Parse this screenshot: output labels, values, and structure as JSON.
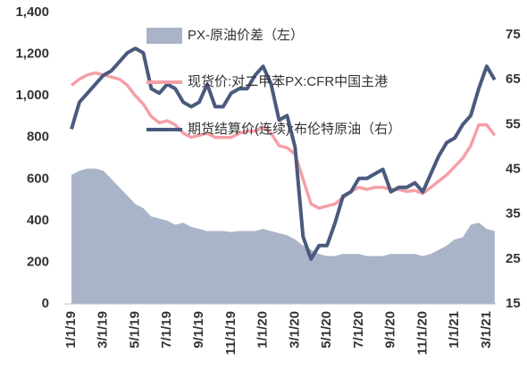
{
  "chart_data": {
    "type": "combo",
    "categories": [
      "1/1/19",
      null,
      null,
      null,
      "3/1/19",
      null,
      null,
      null,
      "5/1/19",
      null,
      null,
      null,
      "7/1/19",
      null,
      null,
      null,
      "9/1/19",
      null,
      null,
      null,
      "11/1/19",
      null,
      null,
      null,
      "1/1/20",
      null,
      null,
      null,
      "3/1/20",
      null,
      null,
      null,
      "5/1/20",
      null,
      null,
      null,
      "7/1/20",
      null,
      null,
      null,
      "9/1/20",
      null,
      null,
      null,
      "11/1/20",
      null,
      null,
      null,
      "1/1/21",
      null,
      null,
      null,
      "3/1/21",
      null
    ],
    "series": [
      {
        "name": "PX-原油价差（左）",
        "type": "area",
        "color": "#aab4c8",
        "values": [
          620,
          640,
          650,
          650,
          640,
          600,
          560,
          520,
          480,
          460,
          420,
          410,
          400,
          380,
          390,
          370,
          360,
          350,
          350,
          350,
          345,
          350,
          350,
          350,
          360,
          350,
          340,
          330,
          310,
          280,
          260,
          240,
          230,
          230,
          240,
          240,
          240,
          230,
          230,
          230,
          240,
          240,
          240,
          240,
          230,
          240,
          260,
          280,
          310,
          320,
          380,
          390,
          360,
          350
        ]
      },
      {
        "name": "现货价:对二甲苯PX:CFR中国主港",
        "type": "line",
        "color": "#f4a0a8",
        "values": [
          1050,
          1080,
          1100,
          1110,
          1100,
          1090,
          1080,
          1050,
          1000,
          960,
          900,
          870,
          880,
          860,
          820,
          800,
          810,
          820,
          800,
          800,
          800,
          820,
          830,
          830,
          850,
          820,
          760,
          750,
          720,
          600,
          480,
          460,
          470,
          480,
          510,
          540,
          560,
          550,
          560,
          560,
          550,
          550,
          540,
          545,
          530,
          560,
          590,
          620,
          660,
          700,
          760,
          860,
          860,
          810
        ]
      },
      {
        "name": "期货结算价(连续):布伦特原油（右）",
        "type": "line",
        "axis": "y2",
        "color": "#4a5a7e",
        "values": [
          54,
          60,
          62,
          64,
          66,
          67,
          69,
          71,
          72,
          71,
          63,
          62,
          64,
          63,
          60,
          59,
          60,
          64,
          59,
          59,
          62,
          63,
          63,
          66,
          68,
          64,
          56,
          57,
          50,
          30,
          25,
          28,
          28,
          33,
          39,
          40,
          43,
          43,
          44,
          45,
          40,
          41,
          41,
          42,
          40,
          44,
          48,
          51,
          52,
          55,
          57,
          63,
          68,
          65
        ]
      }
    ],
    "ylim": [
      0,
      1400
    ],
    "yticks": [
      0,
      200,
      400,
      600,
      800,
      {
        "value": 1000,
        "label": "1,000"
      },
      {
        "value": 1200,
        "label": "1,200"
      },
      {
        "value": 1400,
        "label": "1,400"
      }
    ],
    "y2lim": [
      15,
      80
    ],
    "y2ticks": [
      15,
      25,
      35,
      45,
      55,
      65,
      75
    ]
  }
}
